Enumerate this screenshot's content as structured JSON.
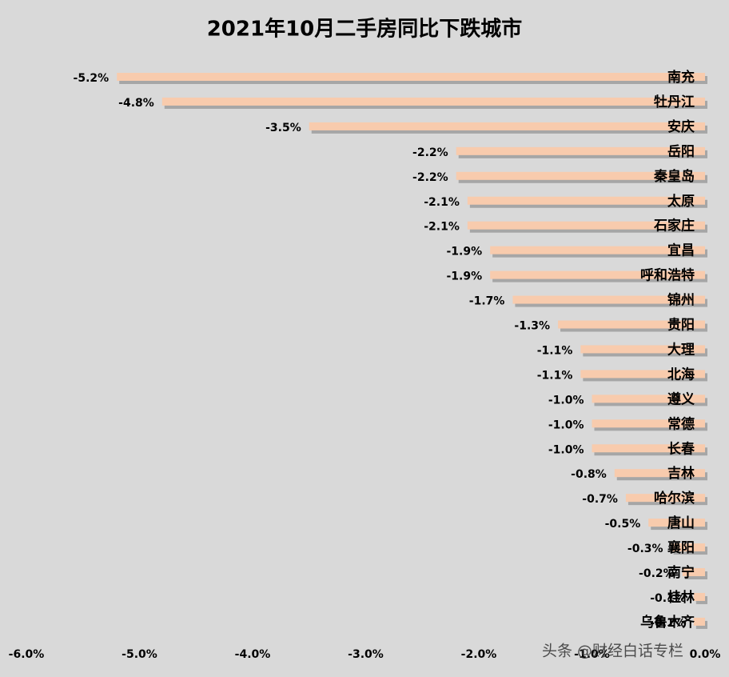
{
  "chart_data": {
    "type": "bar",
    "orientation": "horizontal",
    "title": "2021年10月二手房同比下跌城市",
    "categories": [
      "南充",
      "牡丹江",
      "安庆",
      "岳阳",
      "秦皇岛",
      "太原",
      "石家庄",
      "宜昌",
      "呼和浩特",
      "锦州",
      "贵阳",
      "大理",
      "北海",
      "遵义",
      "常德",
      "长春",
      "吉林",
      "哈尔滨",
      "唐山",
      "襄阳",
      "南宁",
      "桂林",
      "乌鲁木齐"
    ],
    "values": [
      -5.2,
      -4.8,
      -3.5,
      -2.2,
      -2.2,
      -2.1,
      -2.1,
      -1.9,
      -1.9,
      -1.7,
      -1.3,
      -1.1,
      -1.1,
      -1.0,
      -1.0,
      -1.0,
      -0.8,
      -0.7,
      -0.5,
      -0.3,
      -0.2,
      -0.1,
      -0.1
    ],
    "value_labels": [
      "-5.2%",
      "-4.8%",
      "-3.5%",
      "-2.2%",
      "-2.2%",
      "-2.1%",
      "-2.1%",
      "-1.9%",
      "-1.9%",
      "-1.7%",
      "-1.3%",
      "-1.1%",
      "-1.1%",
      "-1.0%",
      "-1.0%",
      "-1.0%",
      "-0.8%",
      "-0.7%",
      "-0.5%",
      "-0.3%",
      "-0.2%",
      "-0.1%",
      "-0.1%"
    ],
    "color": "#f8cbad",
    "xlim": [
      -6,
      0
    ],
    "xticks": [
      {
        "value": -6,
        "label": "-6.0%"
      },
      {
        "value": -5,
        "label": "-5.0%"
      },
      {
        "value": -4,
        "label": "-4.0%"
      },
      {
        "value": -3,
        "label": "-3.0%"
      },
      {
        "value": -2,
        "label": "-2.0%"
      },
      {
        "value": -1,
        "label": "-1.0%"
      },
      {
        "value": 0,
        "label": "0.0%"
      }
    ],
    "watermark": "头条 @财经白话专栏"
  }
}
